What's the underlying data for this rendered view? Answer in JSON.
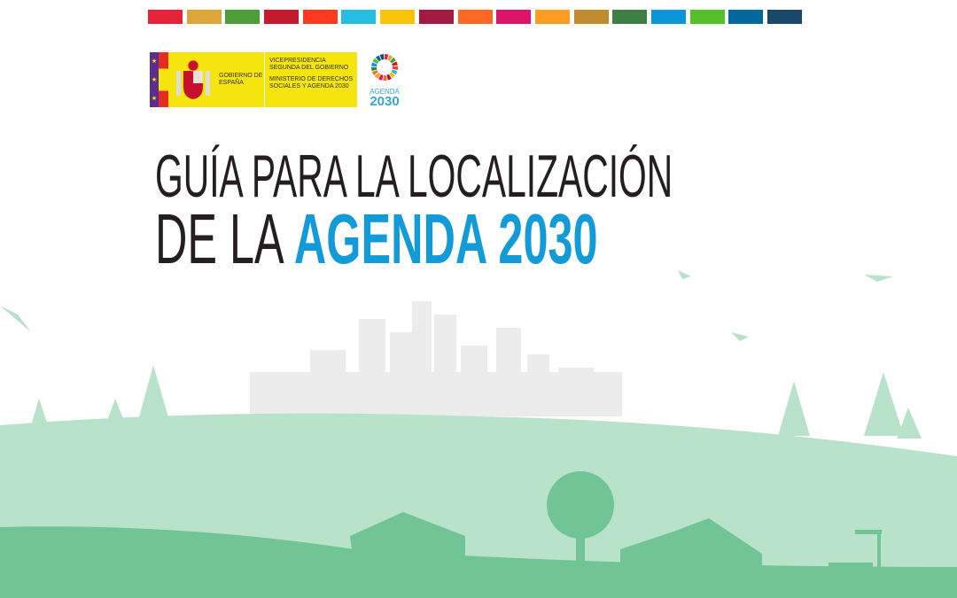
{
  "sdg_colors": [
    "#e5243b",
    "#dda63a",
    "#4c9f38",
    "#c5192d",
    "#ff3a21",
    "#26bde2",
    "#fcc30b",
    "#a21942",
    "#fd6925",
    "#dd1367",
    "#fd9d24",
    "#bf8b2e",
    "#3f7e44",
    "#0a97d9",
    "#56c02b",
    "#00689d",
    "#19486a"
  ],
  "logo": {
    "gobierno": "GOBIERNO DE ESPAÑA",
    "vicepresidencia": "VICEPRESIDENCIA SEGUNDA DEL GOBIERNO",
    "ministerio": "MINISTERIO DE DERECHOS SOCIALES Y AGENDA 2030"
  },
  "agenda_logo": {
    "line1": "AGENDA",
    "line2": "2030"
  },
  "title": {
    "line1": "GUÍA PARA LA LOCALIZACIÓN",
    "line2_prefix": "DE LA ",
    "line2_highlight": "AGENDA 2030"
  },
  "colors": {
    "highlight": "#139bd8",
    "hill_light": "#b9e2cb",
    "hill_dark": "#70c495",
    "city": "#ececec"
  }
}
